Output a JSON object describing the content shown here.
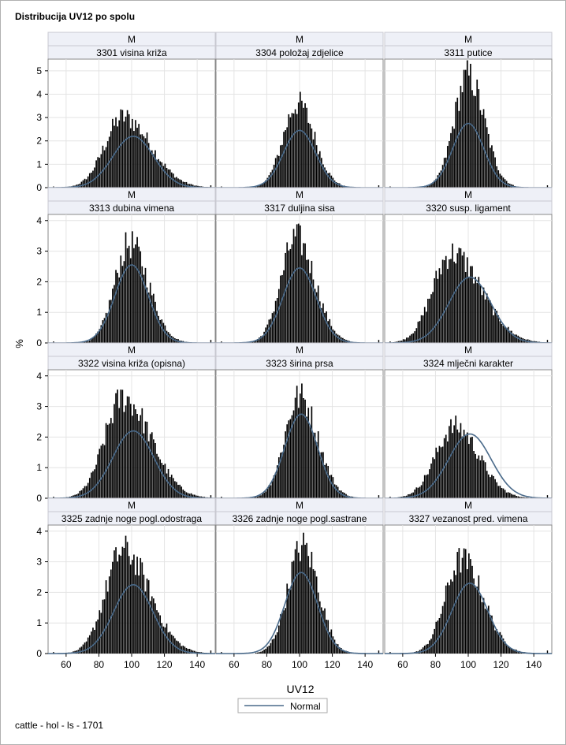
{
  "page": {
    "title": "Distribucija UV12 po spolu",
    "footnote": "cattle - hol - ls - 1701"
  },
  "chart_data": {
    "type": "histogram-panel",
    "y_axis_label": "%",
    "x_axis_label": "UV12",
    "x_ticks": [
      60,
      80,
      100,
      120,
      140
    ],
    "xlim": [
      49,
      151
    ],
    "legend": {
      "position": "bottom-center",
      "entries": [
        {
          "name": "Normal",
          "color": "#4a6a8a"
        }
      ]
    },
    "bar_color": "#000000",
    "curve_color": "#4a6a8a",
    "rows": [
      {
        "ylim": [
          0,
          5.5
        ],
        "yticks": [
          0,
          1,
          2,
          3,
          4,
          5
        ]
      },
      {
        "ylim": [
          0,
          4.2
        ],
        "yticks": [
          0,
          1,
          2,
          3,
          4
        ]
      },
      {
        "ylim": [
          0,
          4.2
        ],
        "yticks": [
          0,
          1,
          2,
          3,
          4
        ]
      },
      {
        "ylim": [
          0,
          4.2
        ],
        "yticks": [
          0,
          1,
          2,
          3,
          4
        ]
      }
    ],
    "panels": [
      {
        "group": "M",
        "label": "3301 visina križa",
        "mean": 101,
        "sd": 12.5,
        "normal_peak": 2.2,
        "hist_peak": 3.35,
        "peak_x": 95,
        "skew": 0.6
      },
      {
        "group": "M",
        "label": "3304 položaj zdjelice",
        "mean": 100,
        "sd": 9.8,
        "normal_peak": 2.45,
        "hist_peak": 4.1,
        "peak_x": 99,
        "skew": 0.2
      },
      {
        "group": "M",
        "label": "3311 putice",
        "mean": 100,
        "sd": 9.5,
        "normal_peak": 2.75,
        "hist_peak": 5.45,
        "peak_x": 100,
        "skew": 0.2
      },
      {
        "group": "M",
        "label": "3313 dubina vimena",
        "mean": 100,
        "sd": 10.2,
        "normal_peak": 2.55,
        "hist_peak": 3.65,
        "peak_x": 99,
        "skew": 0.3
      },
      {
        "group": "M",
        "label": "3317 duljina sisa",
        "mean": 100,
        "sd": 10.2,
        "normal_peak": 2.45,
        "hist_peak": 3.9,
        "peak_x": 98,
        "skew": 0.3
      },
      {
        "group": "M",
        "label": "3320 susp. ligament",
        "mean": 101,
        "sd": 12.8,
        "normal_peak": 2.15,
        "hist_peak": 3.25,
        "peak_x": 90,
        "skew": 0.7
      },
      {
        "group": "M",
        "label": "3322 visina križa (opisna)",
        "mean": 101,
        "sd": 12.5,
        "normal_peak": 2.2,
        "hist_peak": 3.55,
        "peak_x": 95,
        "skew": 0.6
      },
      {
        "group": "M",
        "label": "3323 širina prsa",
        "mean": 101,
        "sd": 10.0,
        "normal_peak": 2.75,
        "hist_peak": 3.75,
        "peak_x": 100,
        "skew": 0.3
      },
      {
        "group": "M",
        "label": "3324 mlječni karakter",
        "mean": 101,
        "sd": 13.0,
        "normal_peak": 2.1,
        "hist_peak": 2.7,
        "peak_x": 92,
        "skew": 0.3
      },
      {
        "group": "M",
        "label": "3325 zadnje noge pogl.odostraga",
        "mean": 101,
        "sd": 12.0,
        "normal_peak": 2.25,
        "hist_peak": 3.85,
        "peak_x": 95,
        "skew": 0.6
      },
      {
        "group": "M",
        "label": "3326 zadnje noge pogl.sastrane",
        "mean": 101,
        "sd": 10.0,
        "normal_peak": 2.65,
        "hist_peak": 3.95,
        "peak_x": 102,
        "skew": 0.1
      },
      {
        "group": "M",
        "label": "3327 vezanost pred. vimena",
        "mean": 101,
        "sd": 11.0,
        "normal_peak": 2.3,
        "hist_peak": 3.45,
        "peak_x": 96,
        "skew": 0.4
      }
    ]
  }
}
